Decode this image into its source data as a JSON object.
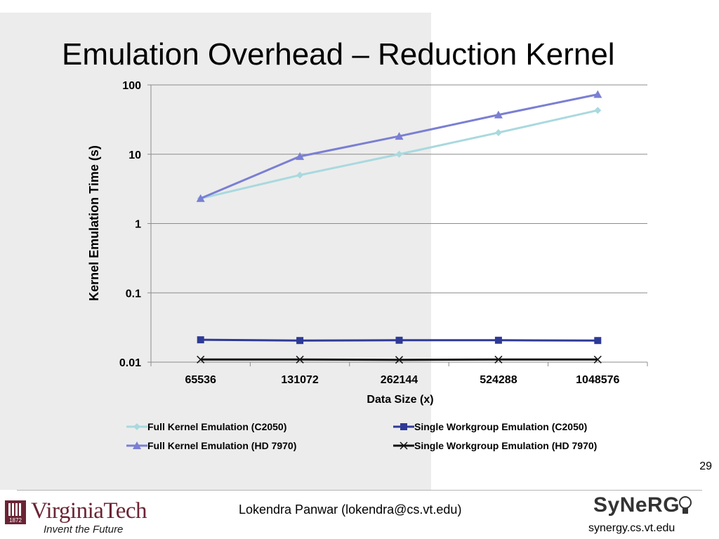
{
  "slide": {
    "title": "Emulation Overhead – Reduction Kernel",
    "number": "29",
    "author": "Lokendra Panwar (lokendra@cs.vt.edu)",
    "logo_left_text": "VirginiaTech",
    "logo_left_tagline": "Invent the Future",
    "logo_left_year": "1872",
    "logo_right_text": "SyNeRG",
    "logo_right_url": "synergy.cs.vt.edu",
    "colors": {
      "vt_maroon": "#6b2434",
      "panel_gray": "#ececec"
    }
  },
  "chart_data": {
    "type": "line",
    "title": "",
    "xlabel": "Data Size (x)",
    "ylabel": "Kernel Emulation Time (s)",
    "yscale": "log",
    "ylim": [
      0.01,
      100
    ],
    "yticks": [
      "0.01",
      "0.1",
      "1",
      "10",
      "100"
    ],
    "categories": [
      "65536",
      "131072",
      "262144",
      "524288",
      "1048576"
    ],
    "grid": "horizontal",
    "legend": "bottom",
    "series": [
      {
        "name": "Full Kernel Emulation (C2050)",
        "values": [
          2.3,
          5.0,
          10.0,
          20.5,
          43.0
        ],
        "color": "#a9d9df",
        "marker": "diamond"
      },
      {
        "name": "Single Workgroup Emulation (C2050)",
        "values": [
          0.021,
          0.0205,
          0.0207,
          0.0207,
          0.0205
        ],
        "color": "#2e3a96",
        "marker": "square"
      },
      {
        "name": "Full Kernel Emulation  (HD 7970)",
        "values": [
          2.3,
          9.3,
          18.2,
          37.0,
          73.0
        ],
        "color": "#7a7fd3",
        "marker": "triangle"
      },
      {
        "name": "Single Workgroup Emulation  (HD 7970)",
        "values": [
          0.0109,
          0.0109,
          0.0108,
          0.0109,
          0.0109
        ],
        "color": "#111111",
        "marker": "x"
      }
    ]
  }
}
